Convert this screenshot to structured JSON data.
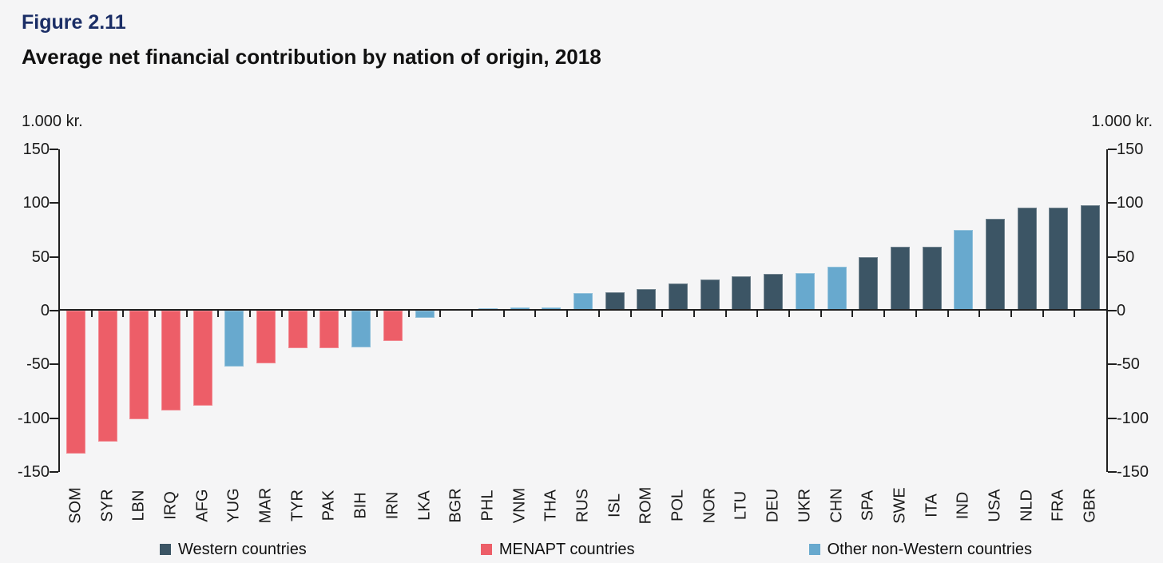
{
  "header": {
    "figure_label": "Figure 2.11",
    "title": "Average net financial contribution by nation of origin, 2018"
  },
  "axes": {
    "unit_left": "1.000 kr.",
    "unit_right": "1.000 kr."
  },
  "legend": {
    "items": [
      {
        "label": "Western countries",
        "group": "western"
      },
      {
        "label": "MENAPT countries",
        "group": "menapt"
      },
      {
        "label": "Other non-Western countries",
        "group": "other"
      }
    ]
  },
  "chart_data": {
    "type": "bar",
    "title": "Average net financial contribution by nation of origin, 2018",
    "unit": "1.000 kr.",
    "ylabel": "1.000 kr.",
    "ylim": [
      -150,
      150
    ],
    "yticks": [
      150,
      100,
      50,
      0,
      -50,
      -100,
      -150
    ],
    "grid": false,
    "legend_position": "bottom",
    "categories": [
      "SOM",
      "SYR",
      "LBN",
      "IRQ",
      "AFG",
      "YUG",
      "MAR",
      "TYR",
      "PAK",
      "BIH",
      "IRN",
      "LKA",
      "BGR",
      "PHL",
      "VNM",
      "THA",
      "RUS",
      "ISL",
      "ROM",
      "POL",
      "NOR",
      "LTU",
      "DEU",
      "UKR",
      "CHN",
      "SPA",
      "SWE",
      "ITA",
      "IND",
      "USA",
      "NLD",
      "FRA",
      "GBR"
    ],
    "values": [
      -133,
      -122,
      -101,
      -93,
      -88,
      -52,
      -49,
      -35,
      -35,
      -34,
      -28,
      -7,
      0,
      2,
      3,
      3,
      16,
      17,
      20,
      25,
      29,
      32,
      34,
      35,
      41,
      50,
      59,
      59,
      75,
      85,
      96,
      96,
      98
    ],
    "groups": [
      "menapt",
      "menapt",
      "menapt",
      "menapt",
      "menapt",
      "other",
      "menapt",
      "menapt",
      "menapt",
      "other",
      "menapt",
      "other",
      "western",
      "other",
      "other",
      "other",
      "other",
      "western",
      "western",
      "western",
      "western",
      "western",
      "western",
      "other",
      "other",
      "western",
      "western",
      "western",
      "other",
      "western",
      "western",
      "western",
      "western"
    ],
    "group_colors": {
      "western": "#3C5565",
      "menapt": "#ED5E68",
      "other": "#68A9CE"
    },
    "text_color": "#1a1a1a",
    "figure_label_color": "#1b2e66"
  }
}
